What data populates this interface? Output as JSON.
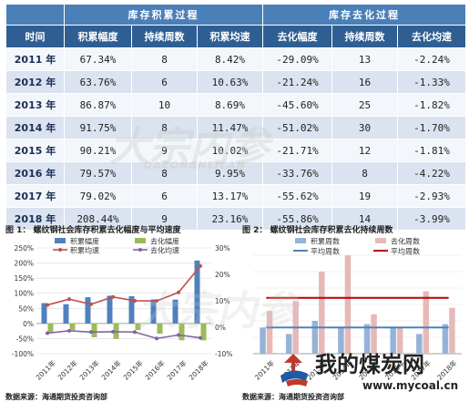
{
  "table": {
    "groups": [
      "库存积累过程",
      "库存去化过程"
    ],
    "headers": [
      "时间",
      "积累幅度",
      "持续周数",
      "积累均速",
      "去化幅度",
      "持续周数",
      "去化均速"
    ],
    "rows": [
      [
        "2011 年",
        "67.34%",
        "8",
        "8.42%",
        "-29.09%",
        "13",
        "-2.24%"
      ],
      [
        "2012 年",
        "63.76%",
        "6",
        "10.63%",
        "-21.24%",
        "16",
        "-1.33%"
      ],
      [
        "2013 年",
        "86.87%",
        "10",
        "8.69%",
        "-45.60%",
        "25",
        "-1.82%"
      ],
      [
        "2014 年",
        "91.75%",
        "8",
        "11.47%",
        "-51.02%",
        "30",
        "-1.70%"
      ],
      [
        "2015 年",
        "90.21%",
        "9",
        "10.02%",
        "-21.71%",
        "12",
        "-1.81%"
      ],
      [
        "2016 年",
        "79.57%",
        "8",
        "9.95%",
        "-33.76%",
        "8",
        "-4.22%"
      ],
      [
        "2017 年",
        "79.02%",
        "6",
        "13.17%",
        "-55.62%",
        "19",
        "-2.93%"
      ],
      [
        "2018 年",
        "208.44%",
        "9",
        "23.16%",
        "-55.86%",
        "14",
        "-3.99%"
      ]
    ]
  },
  "captions": {
    "fig1": "图 1： 螺纹钢社会库存积累去化幅度与平均速度",
    "fig2": "图 2： 螺纹钢社会库存积累去化持续周数",
    "source1": "数据来源：海通期货投资咨询部",
    "source2": "数据来源：海通期货投资咨询部"
  },
  "watermarks": {
    "brand": "大宗内参",
    "brand_en": "DAZONGNEICAN",
    "site_cn": "我的煤炭网",
    "site_url": "www.mycoal.cn"
  },
  "colors": {
    "accum_bar": "#4f81bd",
    "deacc_bar": "#9bbb59",
    "accum_line": "#c0504d",
    "deacc_line": "#8064a2",
    "weeks_accum_bar": "#95b3d7",
    "weeks_deacc_bar": "#e6b9b8",
    "avg_accum_line": "#4f81bd",
    "avg_deacc_line": "#c00000",
    "table_group_header": "#4a7fb8",
    "table_header": "#2f5e93"
  },
  "chart_data": [
    {
      "type": "bar",
      "categories": [
        "2011年",
        "2012年",
        "2013年",
        "2014年",
        "2015年",
        "2016年",
        "2017年",
        "2018年"
      ],
      "series": [
        {
          "name": "积累幅度",
          "kind": "bar",
          "axis": "left",
          "values": [
            67.34,
            63.76,
            86.87,
            91.75,
            90.21,
            79.57,
            79.02,
            208.44
          ]
        },
        {
          "name": "去化幅度",
          "kind": "bar",
          "axis": "left",
          "values": [
            -29.09,
            -21.24,
            -45.6,
            -51.02,
            -21.71,
            -33.76,
            -55.62,
            -55.86
          ]
        },
        {
          "name": "积累均速",
          "kind": "line",
          "axis": "right",
          "values": [
            8.42,
            10.63,
            8.69,
            11.47,
            10.02,
            9.95,
            13.17,
            23.16
          ]
        },
        {
          "name": "去化均速",
          "kind": "line",
          "axis": "right",
          "values": [
            -2.24,
            -1.33,
            -1.82,
            -1.7,
            -1.81,
            -4.22,
            -2.93,
            -3.99
          ]
        }
      ],
      "ylim": [
        -100,
        250
      ],
      "y_ticks": [
        "250%",
        "200%",
        "150%",
        "100%",
        "50%",
        "0%",
        "-50%",
        "-100%"
      ],
      "y2lim": [
        -10,
        30
      ],
      "y2_ticks": [
        "30%",
        "20%",
        "10%",
        "0%",
        "-10%"
      ],
      "legend": "top",
      "grid": true
    },
    {
      "type": "bar",
      "categories": [
        "2011年",
        "2012年",
        "2013年",
        "2014年",
        "2015年",
        "2016年",
        "2017年",
        "2018年"
      ],
      "series": [
        {
          "name": "积累周数",
          "kind": "bar",
          "values": [
            8,
            6,
            10,
            8,
            9,
            8,
            6,
            9
          ]
        },
        {
          "name": "去化周数",
          "kind": "bar",
          "values": [
            13,
            16,
            25,
            30,
            12,
            8,
            19,
            14
          ]
        },
        {
          "name": "平均周数",
          "kind": "line",
          "values": [
            8,
            8,
            8,
            8,
            8,
            8,
            8,
            8
          ]
        },
        {
          "name": "平均周数",
          "kind": "line",
          "values": [
            17,
            17,
            17,
            17,
            17,
            17,
            17,
            17
          ]
        }
      ],
      "ylim": [
        0,
        30
      ],
      "legend": "top",
      "grid": true
    }
  ]
}
